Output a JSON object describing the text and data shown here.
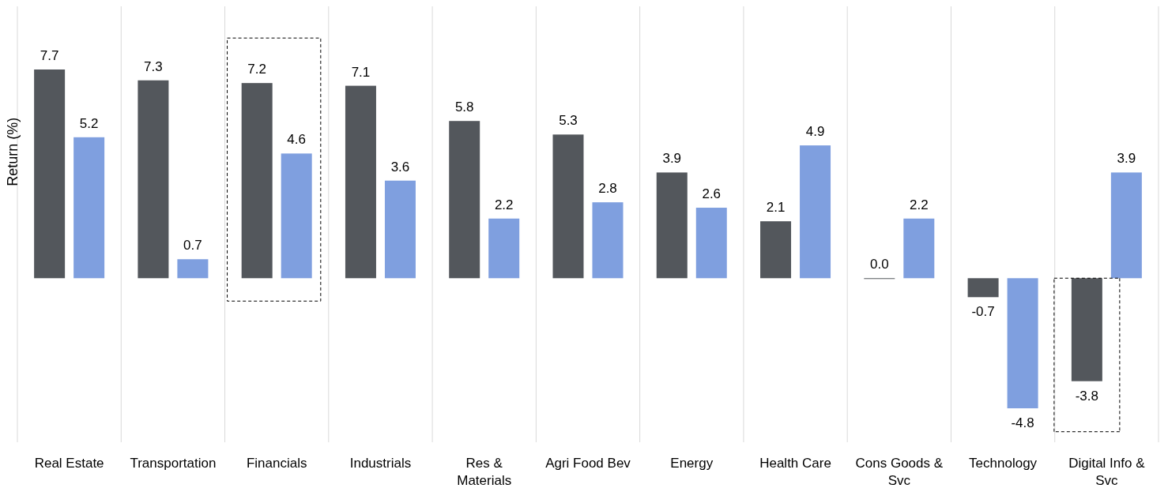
{
  "chart_data": {
    "type": "bar",
    "ylabel": "Return (%)",
    "grid": "x",
    "categories": [
      "Real Estate",
      "Transportation",
      "Financials",
      "Industrials",
      "Res & Materials",
      "Agri Food Bev",
      "Energy",
      "Health Care",
      "Cons Goods & Svc",
      "Technology",
      "Digital Info & Svc"
    ],
    "series": [
      {
        "color": "#53575c",
        "values": [
          7.7,
          7.3,
          7.2,
          7.1,
          5.8,
          5.3,
          3.9,
          2.1,
          0.0,
          -0.7,
          -3.8
        ],
        "value_labels": [
          "7.7",
          "7.3",
          "7.2",
          "7.1",
          "5.8",
          "5.3",
          "3.9",
          "2.1",
          "0.0",
          "-0.7",
          "-3.8"
        ]
      },
      {
        "color": "#7f9fdf",
        "values": [
          5.2,
          0.7,
          4.6,
          3.6,
          2.2,
          2.8,
          2.6,
          4.9,
          2.2,
          -4.8,
          3.9
        ],
        "value_labels": [
          "5.2",
          "0.7",
          "4.6",
          "3.6",
          "2.2",
          "2.8",
          "2.6",
          "4.9",
          "2.2",
          "-4.8",
          "3.9"
        ]
      }
    ]
  }
}
